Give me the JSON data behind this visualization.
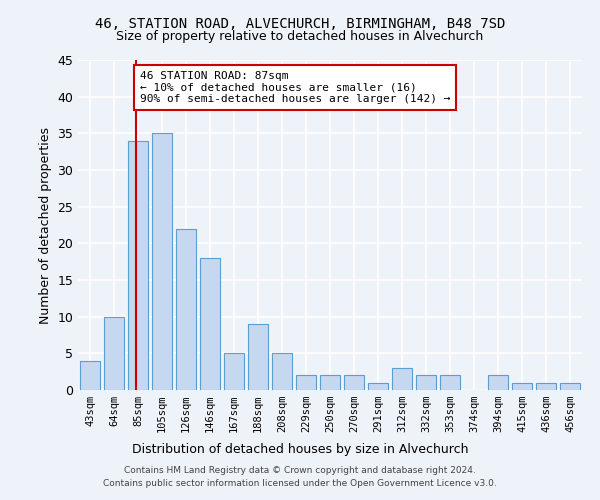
{
  "title1": "46, STATION ROAD, ALVECHURCH, BIRMINGHAM, B48 7SD",
  "title2": "Size of property relative to detached houses in Alvechurch",
  "xlabel": "Distribution of detached houses by size in Alvechurch",
  "ylabel": "Number of detached properties",
  "categories": [
    "43sqm",
    "64sqm",
    "85sqm",
    "105sqm",
    "126sqm",
    "146sqm",
    "167sqm",
    "188sqm",
    "208sqm",
    "229sqm",
    "250sqm",
    "270sqm",
    "291sqm",
    "312sqm",
    "332sqm",
    "353sqm",
    "374sqm",
    "394sqm",
    "415sqm",
    "436sqm",
    "456sqm"
  ],
  "values": [
    4,
    10,
    34,
    35,
    22,
    18,
    5,
    9,
    5,
    2,
    2,
    2,
    1,
    3,
    2,
    2,
    0,
    2,
    1,
    1,
    1
  ],
  "bar_color": "#c5d8f0",
  "bar_edge_color": "#5a9fd4",
  "annotation_text": "46 STATION ROAD: 87sqm\n← 10% of detached houses are smaller (16)\n90% of semi-detached houses are larger (142) →",
  "annotation_box_color": "#ffffff",
  "annotation_box_edge_color": "#cc0000",
  "vline_color": "#cc0000",
  "vline_x": 1.93,
  "ylim": [
    0,
    45
  ],
  "yticks": [
    0,
    5,
    10,
    15,
    20,
    25,
    30,
    35,
    40,
    45
  ],
  "footer": "Contains HM Land Registry data © Crown copyright and database right 2024.\nContains public sector information licensed under the Open Government Licence v3.0.",
  "background_color": "#eef2f9",
  "grid_color": "#ffffff"
}
